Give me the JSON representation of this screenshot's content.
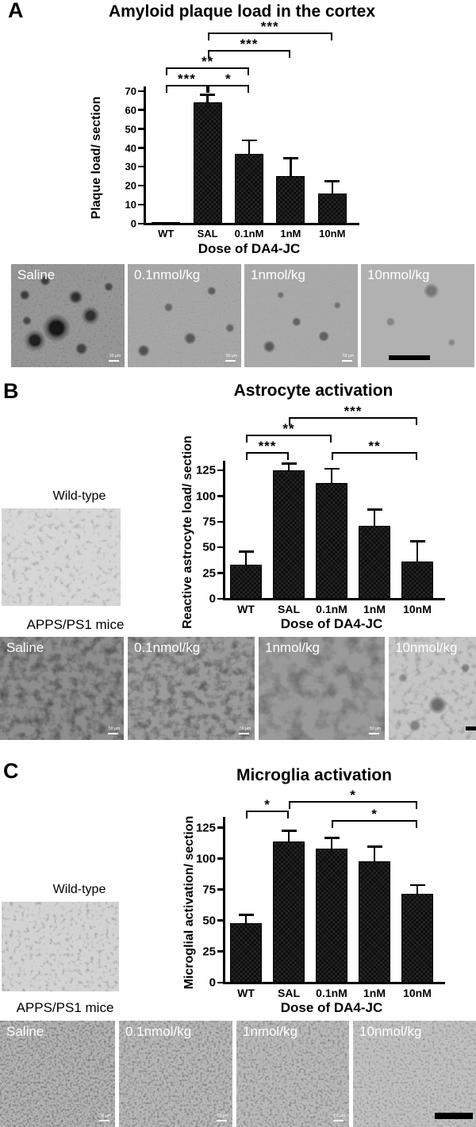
{
  "figure": {
    "panels": [
      {
        "letter": "A",
        "title": "Amyloid plaque load in the cortex",
        "images": [
          {
            "label": "Saline"
          },
          {
            "label": "0.1nmol/kg"
          },
          {
            "label": "1nmol/kg"
          },
          {
            "label": "10nmol/kg"
          }
        ],
        "scale_label": "50 µm"
      },
      {
        "letter": "B",
        "title": "Astrocyte activation",
        "wild_type_label": "Wild-type",
        "mice_label": "APPS/PS1 mice",
        "images": [
          {
            "label": "Saline"
          },
          {
            "label": "0.1nmol/kg"
          },
          {
            "label": "1nmol/kg"
          },
          {
            "label": "10nmol/kg"
          }
        ],
        "scale_label": "50 µm"
      },
      {
        "letter": "C",
        "title": "Microglia activation",
        "wild_type_label": "Wild-type",
        "mice_label": "APPS/PS1 mice",
        "images": [
          {
            "label": "Saline"
          },
          {
            "label": "0.1nmol/kg"
          },
          {
            "label": "1nmol/kg"
          },
          {
            "label": "10nmol/kg"
          }
        ],
        "scale_label": "50 µm"
      }
    ]
  },
  "chart_data": [
    {
      "type": "bar",
      "title": "Amyloid plaque load in the cortex",
      "categories": [
        "WT",
        "SAL",
        "0.1nM",
        "1nM",
        "10nM"
      ],
      "values": [
        0.5,
        64,
        37,
        25,
        16
      ],
      "errors": [
        0,
        3.5,
        6.5,
        9,
        6
      ],
      "xlabel": "Dose of DA4-JC",
      "ylabel": "Plaque load/ section",
      "ylim": [
        0,
        70
      ],
      "yticks": [
        0,
        10,
        20,
        30,
        40,
        50,
        60,
        70
      ],
      "grid": false,
      "bar_color": "#0d0d0d",
      "significance": [
        {
          "groups": [
            "WT",
            "SAL"
          ],
          "label": "***",
          "level": 0
        },
        {
          "groups": [
            "SAL",
            "0.1nM"
          ],
          "label": "*",
          "level": 0
        },
        {
          "groups": [
            "WT",
            "0.1nM"
          ],
          "label": "**",
          "level": 1
        },
        {
          "groups": [
            "SAL",
            "1nM"
          ],
          "label": "***",
          "level": 2
        },
        {
          "groups": [
            "SAL",
            "10nM"
          ],
          "label": "***",
          "level": 3
        }
      ]
    },
    {
      "type": "bar",
      "title": "Astrocyte activation",
      "categories": [
        "WT",
        "SAL",
        "0.1nM",
        "1nM",
        "10nM"
      ],
      "values": [
        33,
        125,
        113,
        71,
        36
      ],
      "errors": [
        12,
        6,
        13,
        15,
        19
      ],
      "xlabel": "Dose of DA4-JC",
      "ylabel": "Reactive astrocyte load/ section",
      "ylim": [
        0,
        130
      ],
      "yticks": [
        0,
        25,
        50,
        75,
        100,
        125
      ],
      "grid": false,
      "bar_color": "#0d0d0d",
      "significance": [
        {
          "groups": [
            "WT",
            "SAL"
          ],
          "label": "***",
          "level": 0
        },
        {
          "groups": [
            "0.1nM",
            "10nM"
          ],
          "label": "**",
          "level": 0
        },
        {
          "groups": [
            "WT",
            "0.1nM"
          ],
          "label": "**",
          "level": 1
        },
        {
          "groups": [
            "SAL",
            "10nM"
          ],
          "label": "***",
          "level": 2
        }
      ]
    },
    {
      "type": "bar",
      "title": "Microglia activation",
      "categories": [
        "WT",
        "SAL",
        "0.1nM",
        "1nM",
        "10nM"
      ],
      "values": [
        48,
        114,
        108,
        98,
        72
      ],
      "errors": [
        6,
        8,
        8,
        11,
        6
      ],
      "xlabel": "Dose of DA4-JC",
      "ylabel": "Microglial activation/ section",
      "ylim": [
        0,
        130
      ],
      "yticks": [
        0,
        25,
        50,
        75,
        100,
        125
      ],
      "grid": false,
      "bar_color": "#0d0d0d",
      "significance": [
        {
          "groups": [
            "0.1nM",
            "10nM"
          ],
          "label": "*",
          "level": 0
        },
        {
          "groups": [
            "WT",
            "SAL"
          ],
          "label": "*",
          "level": 1
        },
        {
          "groups": [
            "SAL",
            "10nM"
          ],
          "label": "*",
          "level": 2
        }
      ]
    }
  ]
}
